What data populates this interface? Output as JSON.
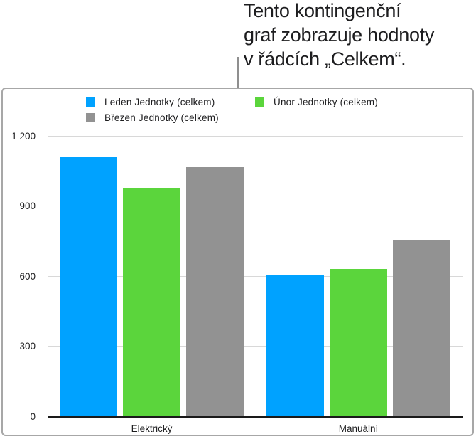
{
  "callout": {
    "lines": [
      "Tento kontingenční",
      "graf zobrazuje hodnoty",
      "v řádcích „Celkem“."
    ]
  },
  "chart_data": {
    "type": "bar",
    "title": "",
    "categories": [
      "Elektrický",
      "Manuální"
    ],
    "series": [
      {
        "name": "Leden Jednotky (celkem)",
        "color": "#00A2FF",
        "values": [
          1115,
          610
        ]
      },
      {
        "name": "Únor Jednotky (celkem)",
        "color": "#5BD53C",
        "values": [
          980,
          635
        ]
      },
      {
        "name": "Březen Jednotky (celkem)",
        "color": "#929292",
        "values": [
          1070,
          755
        ]
      }
    ],
    "xlabel": "",
    "ylabel": "",
    "ylim": [
      0,
      1200
    ],
    "yticks": [
      0,
      300,
      600,
      900,
      1200
    ],
    "ytick_labels": [
      "0",
      "300",
      "600",
      "900",
      "1 200"
    ],
    "grid": true,
    "legend_position": "top-left",
    "colors": {
      "gridline": "#D8D8D8",
      "axis": "#1A1A1A",
      "card_border": "#A7A7A7",
      "leader_line": "#8F8F8F",
      "text": "#1D1D1F"
    }
  }
}
